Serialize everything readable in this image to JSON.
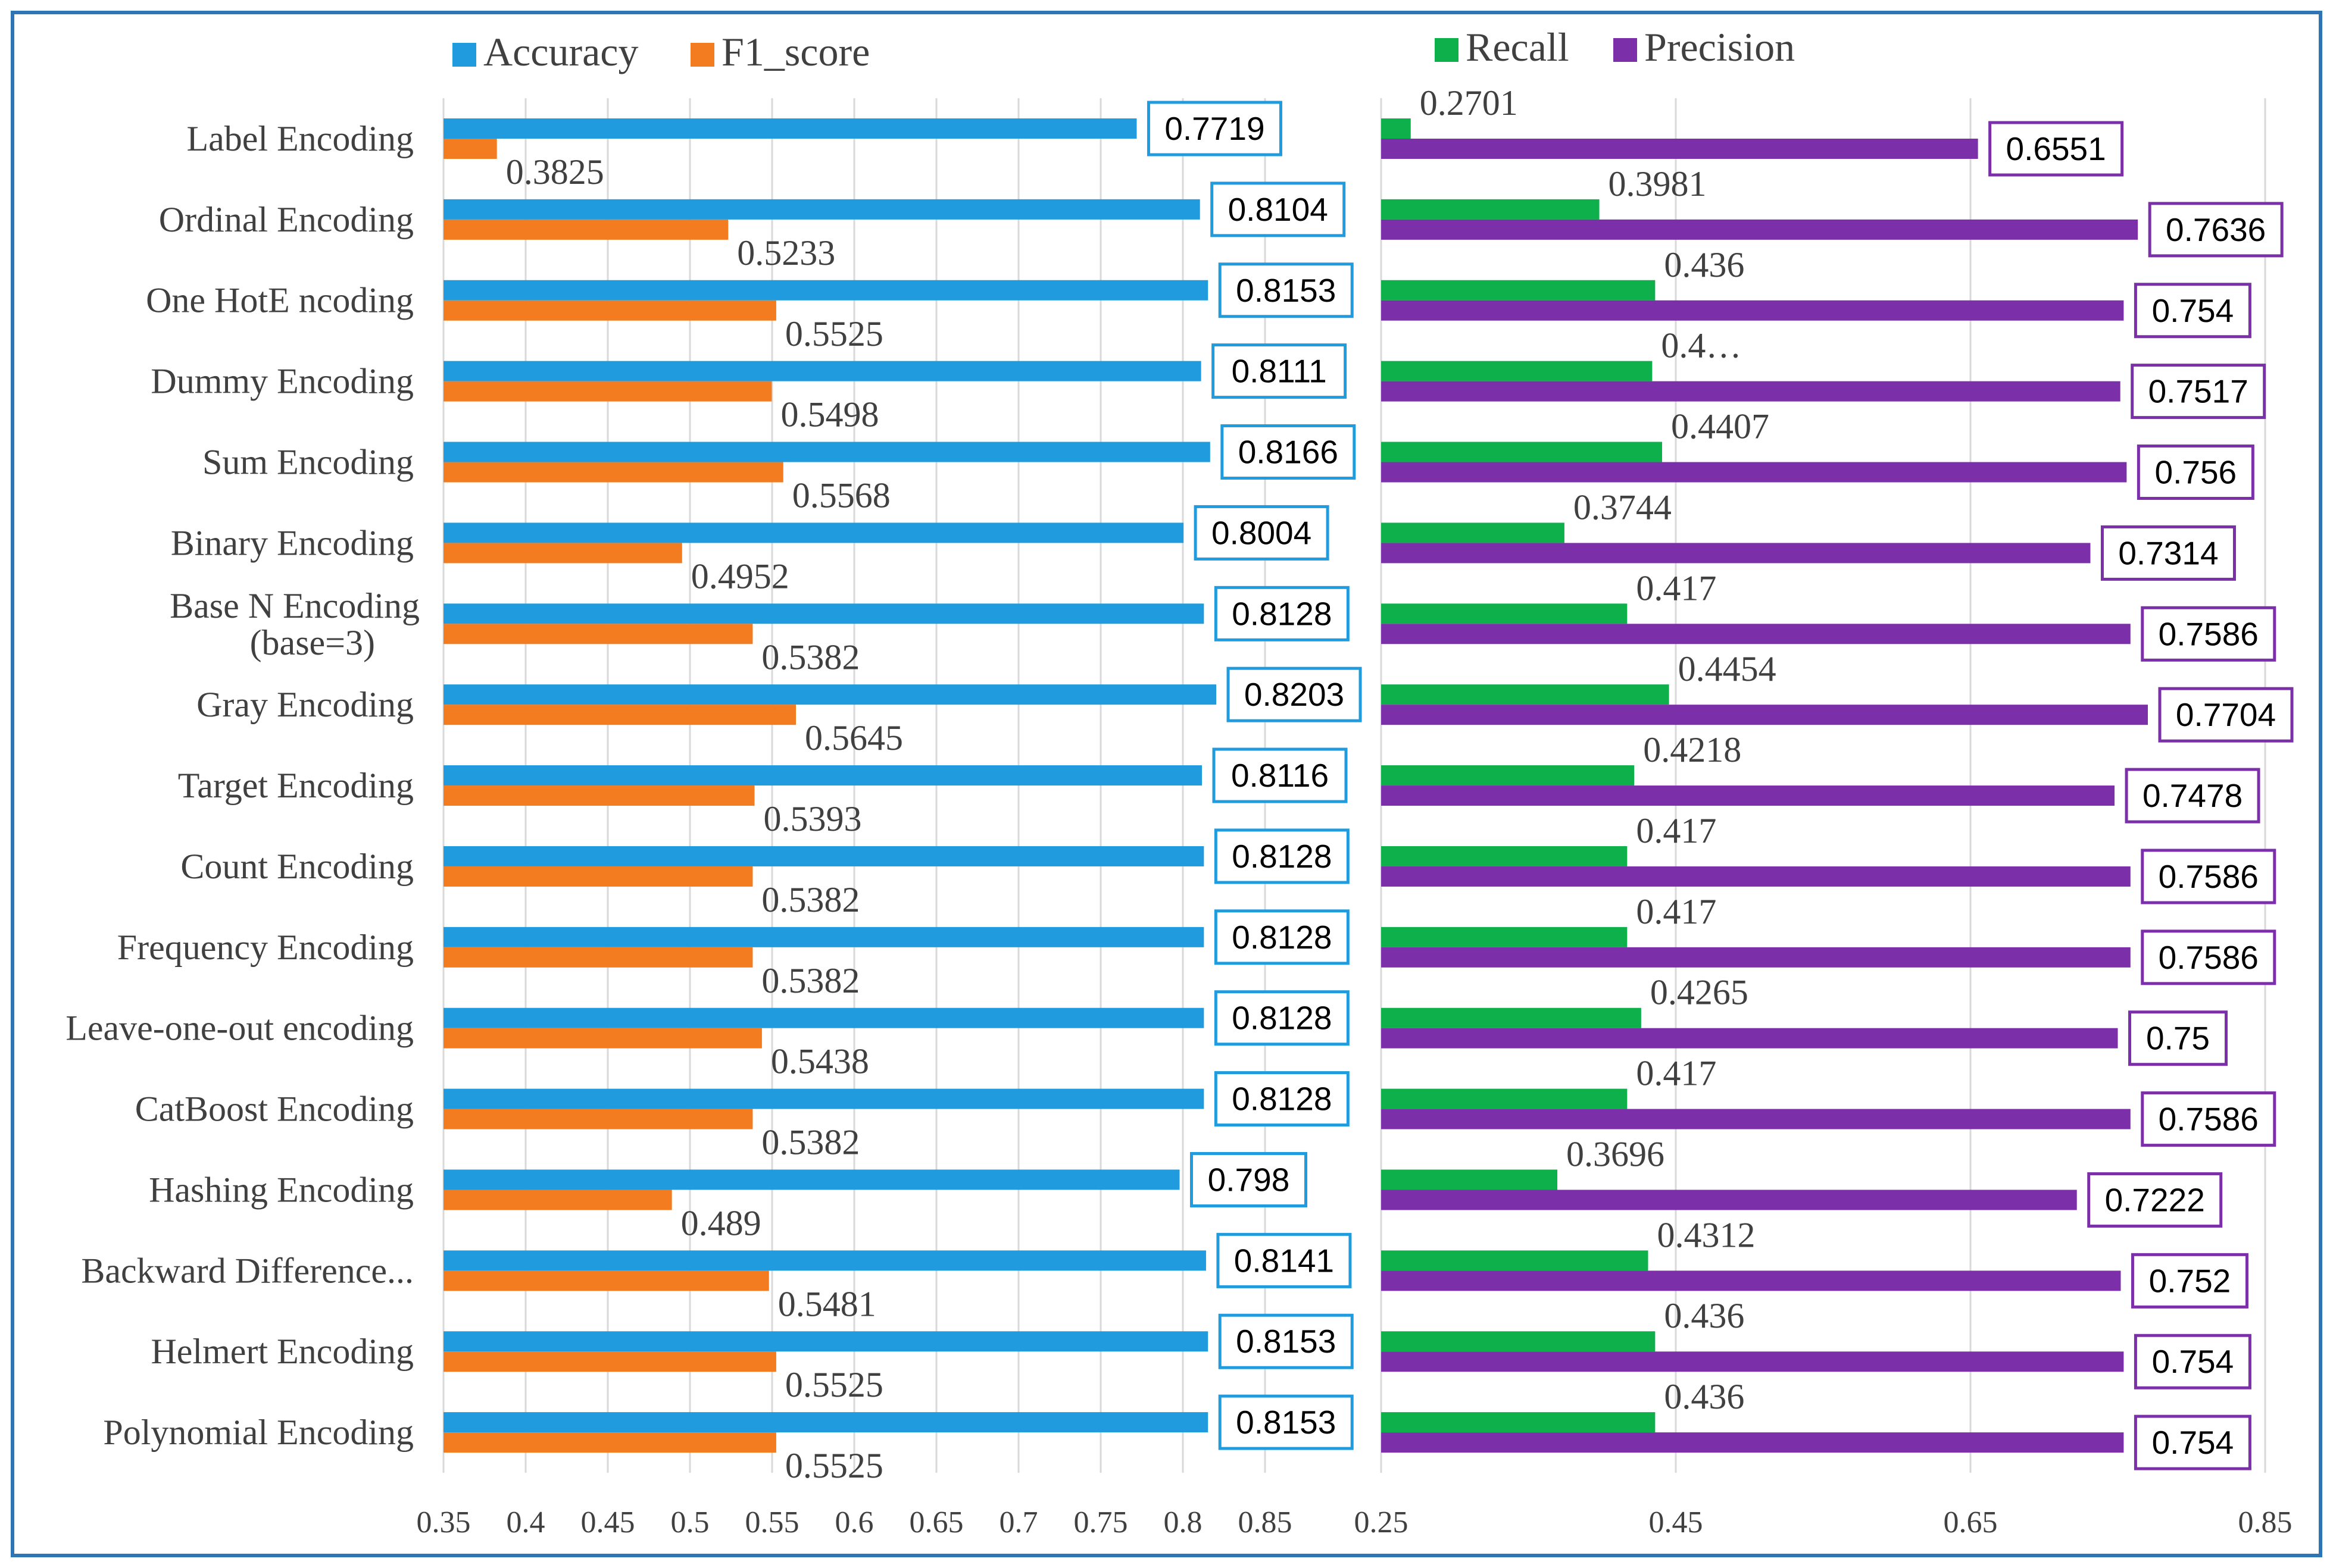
{
  "chart_data": [
    {
      "type": "bar",
      "orientation": "horizontal",
      "categories": [
        "Label Encoding",
        "Ordinal Encoding",
        "One HotE ncoding",
        "Dummy Encoding",
        "Sum Encoding",
        "Binary Encoding",
        "Base N Encoding (base=3)",
        "Gray Encoding",
        "Target  Encoding",
        "Count Encoding",
        "Frequency Encoding",
        "Leave-one-out encoding",
        "CatBoost Encoding",
        "Hashing Encoding",
        "Backward Difference...",
        "Helmert Encoding",
        "Polynomial Encoding"
      ],
      "series": [
        {
          "name": "Accuracy",
          "color": "#1F9BDE",
          "values": [
            0.7719,
            0.8104,
            0.8153,
            0.8111,
            0.8166,
            0.8004,
            0.8128,
            0.8203,
            0.8116,
            0.8128,
            0.8128,
            0.8128,
            0.8128,
            0.798,
            0.8141,
            0.8153,
            0.8153
          ],
          "labels": [
            "0.7719",
            "0.8104",
            "0.8153",
            "0.8111",
            "0.8166",
            "0.8004",
            "0.8128",
            "0.8203",
            "0.8116",
            "0.8128",
            "0.8128",
            "0.8128",
            "0.8128",
            "0.798",
            "0.8141",
            "0.8153",
            "0.8153"
          ]
        },
        {
          "name": "F1_score",
          "color": "#F47C20",
          "values": [
            0.3825,
            0.5233,
            0.5525,
            0.5498,
            0.5568,
            0.4952,
            0.5382,
            0.5645,
            0.5393,
            0.5382,
            0.5382,
            0.5438,
            0.5382,
            0.489,
            0.5481,
            0.5525,
            0.5525
          ],
          "labels": [
            "0.3825",
            "0.5233",
            "0.5525",
            "0.5498",
            "0.5568",
            "0.4952",
            "0.5382",
            "0.5645",
            "0.5393",
            "0.5382",
            "0.5382",
            "0.5438",
            "0.5382",
            "0.489",
            "0.5481",
            "0.5525",
            "0.5525"
          ]
        }
      ],
      "xlim": [
        0.35,
        0.85
      ],
      "xticks": [
        "0.35",
        "0.4",
        "0.45",
        "0.5",
        "0.55",
        "0.6",
        "0.65",
        "0.7",
        "0.75",
        "0.8",
        "0.85"
      ],
      "legend": "top",
      "grid": true
    },
    {
      "type": "bar",
      "orientation": "horizontal",
      "series": [
        {
          "name": "Recall",
          "color": "#0DB04B",
          "values": [
            0.2701,
            0.3981,
            0.436,
            0.434,
            0.4407,
            0.3744,
            0.417,
            0.4454,
            0.4218,
            0.417,
            0.417,
            0.4265,
            0.417,
            0.3696,
            0.4312,
            0.436,
            0.436
          ],
          "labels": [
            "0.2701",
            "0.3981",
            "0.436",
            "0.4…",
            "0.4407",
            "0.3744",
            "0.417",
            "0.4454",
            "0.4218",
            "0.417",
            "0.417",
            "0.4265",
            "0.417",
            "0.3696",
            "0.4312",
            "0.436",
            "0.436"
          ]
        },
        {
          "name": "Precision",
          "color": "#7B2FA8",
          "values": [
            0.6551,
            0.7636,
            0.754,
            0.7517,
            0.756,
            0.7314,
            0.7586,
            0.7704,
            0.7478,
            0.7586,
            0.7586,
            0.75,
            0.7586,
            0.7222,
            0.752,
            0.754,
            0.754
          ],
          "labels": [
            "0.6551",
            "0.7636",
            "0.754",
            "0.7517",
            "0.756",
            "0.7314",
            "0.7586",
            "0.7704",
            "0.7478",
            "0.7586",
            "0.7586",
            "0.75",
            "0.7586",
            "0.7222",
            "0.752",
            "0.754",
            "0.754"
          ]
        }
      ],
      "xlim": [
        0.25,
        0.85
      ],
      "xticks": [
        "0.25",
        "0.45",
        "0.65",
        "0.85"
      ],
      "legend": "top",
      "grid": true
    }
  ]
}
